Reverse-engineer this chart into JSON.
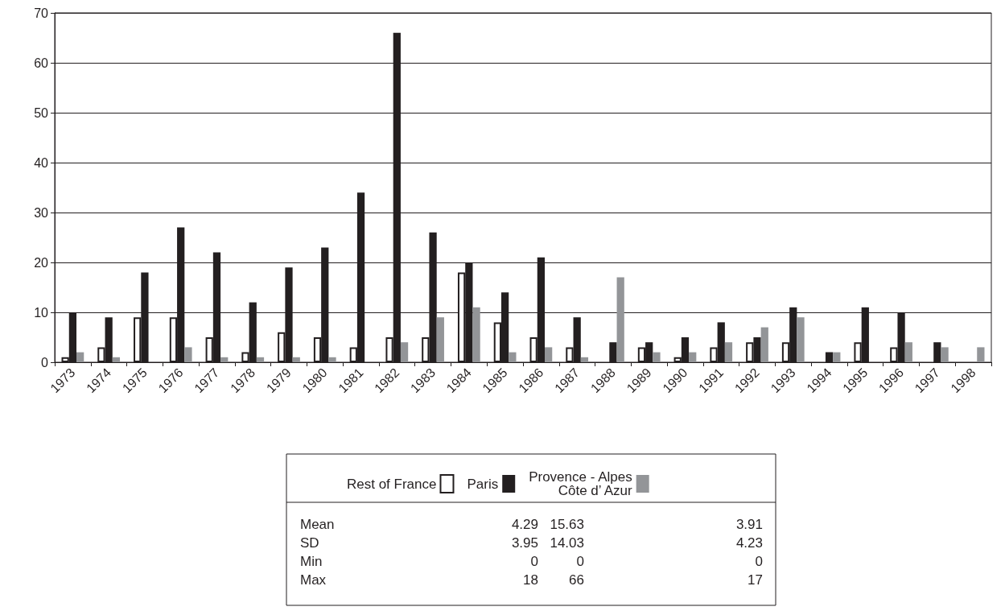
{
  "chart_data": {
    "type": "bar",
    "categories": [
      "1973",
      "1974",
      "1975",
      "1976",
      "1977",
      "1978",
      "1979",
      "1980",
      "1981",
      "1982",
      "1983",
      "1984",
      "1985",
      "1986",
      "1987",
      "1988",
      "1989",
      "1990",
      "1991",
      "1992",
      "1993",
      "1994",
      "1995",
      "1996",
      "1997",
      "1998"
    ],
    "series": [
      {
        "name": "Rest of France",
        "color": "#ffffff",
        "values": [
          1,
          3,
          9,
          9,
          5,
          2,
          6,
          5,
          3,
          5,
          5,
          18,
          8,
          5,
          3,
          0,
          3,
          1,
          3,
          4,
          4,
          0,
          4,
          3,
          0,
          0
        ]
      },
      {
        "name": "Paris",
        "color": "#231f20",
        "values": [
          10,
          9,
          18,
          27,
          22,
          12,
          19,
          23,
          34,
          66,
          26,
          20,
          14,
          21,
          9,
          4,
          4,
          5,
          8,
          5,
          11,
          2,
          11,
          10,
          4,
          0
        ]
      },
      {
        "name": "Provence - Alpes\nCôte d’ Azur",
        "color": "#939598",
        "values": [
          2,
          1,
          0,
          3,
          1,
          1,
          1,
          1,
          0,
          4,
          9,
          11,
          2,
          3,
          1,
          17,
          2,
          2,
          4,
          7,
          9,
          2,
          0,
          4,
          3,
          3
        ]
      }
    ],
    "ylim": [
      0,
      70
    ],
    "yticks": [
      0,
      10,
      20,
      30,
      40,
      50,
      60,
      70
    ],
    "grid": "y",
    "legend": "bottom",
    "annotations": [
      "Mean",
      "4.29",
      "15.63",
      "3.91",
      "SD",
      "3.95",
      "14.03",
      "4.23",
      "Min",
      "0",
      "0",
      "0",
      "Max",
      "18",
      "66",
      "17"
    ]
  }
}
